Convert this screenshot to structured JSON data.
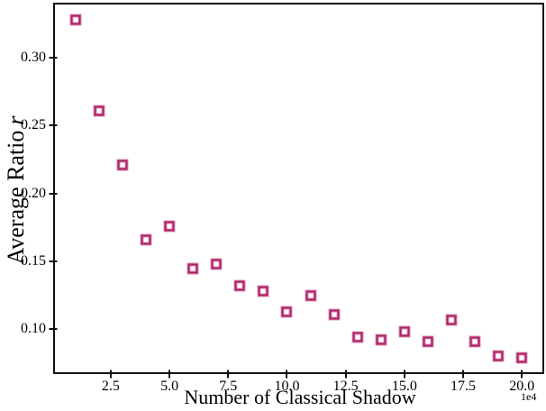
{
  "figure": {
    "xlabel": "Number of Classical Shadow",
    "ylabel_prefix": "Average Ratio",
    "ylabel_symbol": "r",
    "offset_label": "1e4"
  },
  "chart_data": {
    "type": "scatter",
    "title": "",
    "xlabel": "Number of Classical Shadow",
    "ylabel": "Average Ratio r",
    "x_axis_multiplier": "1e4",
    "marker_style": "open-square",
    "marker_edge_color": "#aa2064",
    "marker_halo_color": "#dd8fb5",
    "axis_color": "#111111",
    "grid": false,
    "legend_position": "none",
    "xlim": [
      0.05,
      20.95
    ],
    "ylim": [
      0.067,
      0.3405
    ],
    "x_ticks": [
      2.5,
      5.0,
      7.5,
      10.0,
      12.5,
      15.0,
      17.5,
      20.0
    ],
    "x_tick_labels": [
      "2.5",
      "5.0",
      "7.5",
      "10.0",
      "12.5",
      "15.0",
      "17.5",
      "20.0"
    ],
    "y_ticks": [
      0.1,
      0.15,
      0.2,
      0.25,
      0.3
    ],
    "y_tick_labels": [
      "0.10",
      "0.15",
      "0.20",
      "0.25",
      "0.30"
    ],
    "series": [
      {
        "name": "average-ratio",
        "x": [
          1,
          2,
          3,
          4,
          5,
          6,
          7,
          8,
          9,
          10,
          11,
          12,
          13,
          14,
          15,
          16,
          17,
          18,
          19,
          20
        ],
        "y": [
          0.328,
          0.261,
          0.221,
          0.166,
          0.176,
          0.145,
          0.148,
          0.132,
          0.128,
          0.113,
          0.125,
          0.111,
          0.094,
          0.092,
          0.098,
          0.091,
          0.107,
          0.091,
          0.08,
          0.079
        ]
      }
    ]
  }
}
